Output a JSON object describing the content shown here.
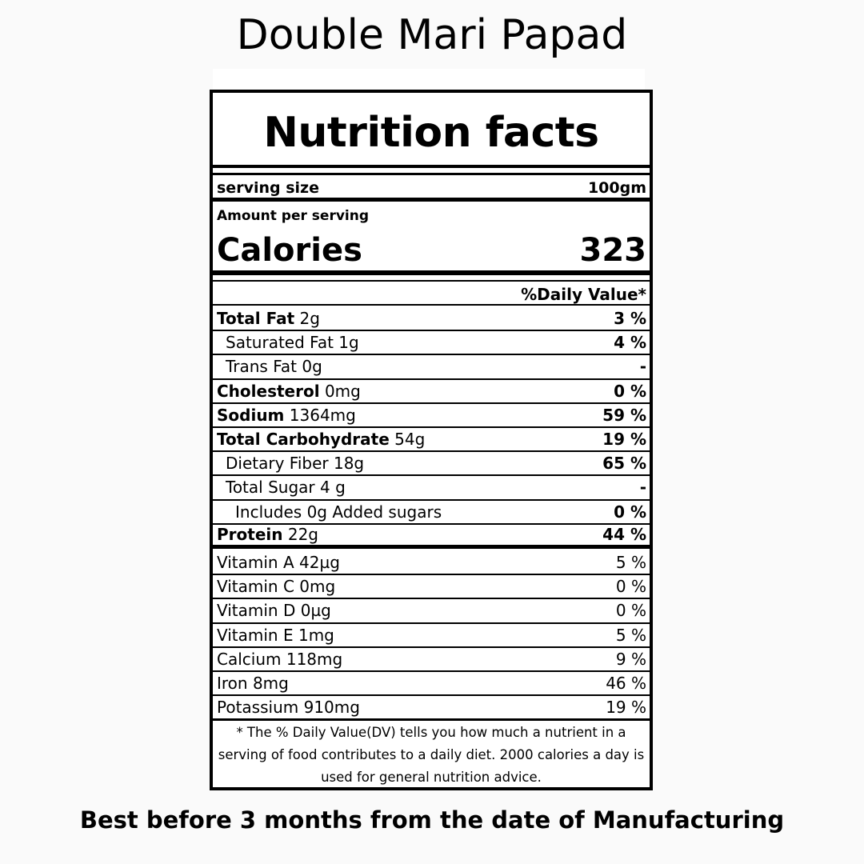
{
  "product_title": "Double Mari Papad",
  "label": {
    "title": "Nutrition facts",
    "serving_size_label": "serving size",
    "serving_size_value": "100gm",
    "amount_per_serving": "Amount per serving",
    "calories_label": "Calories",
    "calories_value": "323",
    "daily_value_header": "%Daily Value*",
    "nutrients": [
      {
        "name": "Total Fat",
        "amount": "2g",
        "dv": "3 %",
        "bold_name": true,
        "bold_dv": true,
        "indent": 0
      },
      {
        "name": "Saturated Fat",
        "amount": "1g",
        "dv": "4 %",
        "bold_name": false,
        "bold_dv": true,
        "indent": 1
      },
      {
        "name": "Trans Fat",
        "amount": "0g",
        "dv": "-",
        "bold_name": false,
        "bold_dv": true,
        "indent": 1
      },
      {
        "name": "Cholesterol",
        "amount": "0mg",
        "dv": "0 %",
        "bold_name": true,
        "bold_dv": true,
        "indent": 0
      },
      {
        "name": "Sodium",
        "amount": "1364mg",
        "dv": "59 %",
        "bold_name": true,
        "bold_dv": true,
        "indent": 0
      },
      {
        "name": "Total Carbohydrate",
        "amount": "54g",
        "dv": "19 %",
        "bold_name": true,
        "bold_dv": true,
        "indent": 0
      },
      {
        "name": "Dietary Fiber",
        "amount": "18g",
        "dv": "65 %",
        "bold_name": false,
        "bold_dv": true,
        "indent": 1
      },
      {
        "name": "Total Sugar",
        "amount": "4 g",
        "dv": "-",
        "bold_name": false,
        "bold_dv": true,
        "indent": 1
      },
      {
        "name": "Includes 0g Added sugars",
        "amount": "",
        "dv": "0 %",
        "bold_name": false,
        "bold_dv": true,
        "indent": 2
      },
      {
        "name": "Protein",
        "amount": "22g",
        "dv": "44 %",
        "bold_name": true,
        "bold_dv": true,
        "indent": 0
      }
    ],
    "micronutrients": [
      {
        "name": "Vitamin A",
        "amount": "42µg",
        "dv": "5 %"
      },
      {
        "name": "Vitamin C",
        "amount": "0mg",
        "dv": "0 %"
      },
      {
        "name": "Vitamin D",
        "amount": "0µg",
        "dv": "0 %"
      },
      {
        "name": "Vitamin E",
        "amount": "1mg",
        "dv": "5 %"
      },
      {
        "name": "Calcium",
        "amount": "118mg",
        "dv": "9 %"
      },
      {
        "name": "Iron",
        "amount": "8mg",
        "dv": "46 %"
      },
      {
        "name": "Potassium",
        "amount": "910mg",
        "dv": "19 %"
      }
    ],
    "footnote": "* The %  Daily Value(DV) tells you how much a nutrient in a serving of food contributes to a daily diet. 2000 calories a day is used for general nutrition advice."
  },
  "best_before": "Best before 3 months from the date of Manufacturing"
}
